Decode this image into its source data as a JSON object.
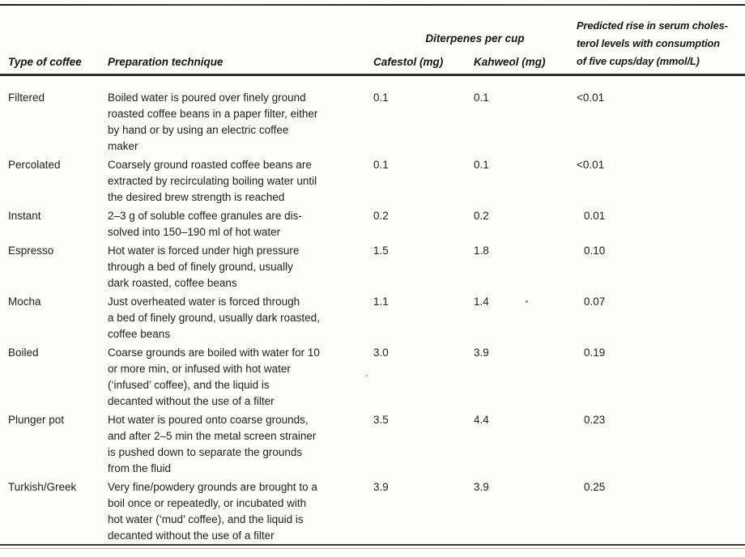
{
  "colors": {
    "background": "#fcfcfa",
    "text": "#212121",
    "rule": "#2e2e2e"
  },
  "table": {
    "header": {
      "type": "Type of coffee",
      "preparation": "Preparation technique",
      "diterpenes_group": "Diterpenes per cup",
      "cafestol": "Cafestol (mg)",
      "kahweol": "Kahweol (mg)",
      "cholesterol": "Predicted rise in serum choles-\nterol levels with consumption\nof five cups/day (mmol/L)"
    },
    "rows": [
      {
        "type": "Filtered",
        "preparation": "Boiled water is poured over finely ground\nroasted coffee beans in a paper filter, either\nby hand or by using an electric coffee\nmaker",
        "cafestol": "0.1",
        "kahweol": "0.1",
        "cholesterol": "<0.01"
      },
      {
        "type": "Percolated",
        "preparation": "Coarsely ground roasted coffee beans are\nextracted by recirculating boiling water until\nthe desired brew strength is reached",
        "cafestol": "0.1",
        "kahweol": "0.1",
        "cholesterol": "<0.01"
      },
      {
        "type": "Instant",
        "preparation": "2–3 g of soluble coffee granules are dis-\nsolved into 150–190 ml of hot water",
        "cafestol": "0.2",
        "kahweol": "0.2",
        "cholesterol": "0.01"
      },
      {
        "type": "Espresso",
        "preparation": "Hot water is forced under high pressure\nthrough a bed of finely ground, usually\ndark roasted, coffee beans",
        "cafestol": "1.5",
        "kahweol": "1.8",
        "cholesterol": "0.10"
      },
      {
        "type": "Mocha",
        "preparation": "Just overheated water is forced through\na bed of finely ground, usually dark roasted,\ncoffee beans",
        "cafestol": "1.1",
        "kahweol": "1.4",
        "cholesterol": "0.07"
      },
      {
        "type": "Boiled",
        "preparation": "Coarse grounds are boiled with water for 10\nor more min, or infused with hot water\n(‘infused’ coffee), and the liquid is\ndecanted without the use of a filter",
        "cafestol": "3.0",
        "kahweol": "3.9",
        "cholesterol": "0.19"
      },
      {
        "type": "Plunger pot",
        "preparation": "Hot water is poured onto coarse grounds,\nand after 2–5 min the metal screen strainer\nis pushed down to separate the grounds\nfrom the fluid",
        "cafestol": "3.5",
        "kahweol": "4.4",
        "cholesterol": "0.23"
      },
      {
        "type": "Turkish/Greek",
        "preparation": "Very fine/powdery grounds are brought to a\nboil once or repeatedly, or incubated with\nhot water (‘mud’ coffee), and the liquid is\ndecanted without the use of a filter",
        "cafestol": "3.9",
        "kahweol": "3.9",
        "cholesterol": "0.25"
      }
    ]
  }
}
